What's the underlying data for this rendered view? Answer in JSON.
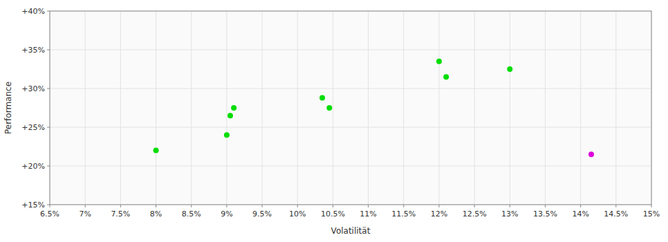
{
  "chart_data": {
    "type": "scatter",
    "xlabel": "Volatilität",
    "ylabel": "Performance",
    "series": [
      {
        "color": "#00dd00",
        "marker": "circle",
        "x": [
          8.0,
          9.0,
          9.05,
          9.1,
          10.35,
          10.45,
          12.0,
          12.1,
          13.0
        ],
        "values": [
          22.0,
          24.0,
          26.5,
          27.5,
          28.8,
          27.5,
          33.5,
          31.5,
          32.5
        ]
      },
      {
        "color": "#dd00dd",
        "marker": "circle",
        "x": [
          14.15
        ],
        "values": [
          21.5
        ]
      }
    ],
    "xlim": [
      6.5,
      15.0
    ],
    "ylim": [
      15.0,
      40.0
    ],
    "xticks": [
      {
        "value": 6.5,
        "label": "6.5%"
      },
      {
        "value": 7.0,
        "label": "7%"
      },
      {
        "value": 7.5,
        "label": "7.5%"
      },
      {
        "value": 8.0,
        "label": "8%"
      },
      {
        "value": 8.5,
        "label": "8.5%"
      },
      {
        "value": 9.0,
        "label": "9%"
      },
      {
        "value": 9.5,
        "label": "9.5%"
      },
      {
        "value": 10.0,
        "label": "10%"
      },
      {
        "value": 10.5,
        "label": "10.5%"
      },
      {
        "value": 11.0,
        "label": "11%"
      },
      {
        "value": 11.5,
        "label": "11.5%"
      },
      {
        "value": 12.0,
        "label": "12%"
      },
      {
        "value": 12.5,
        "label": "12.5%"
      },
      {
        "value": 13.0,
        "label": "13%"
      },
      {
        "value": 13.5,
        "label": "13.5%"
      },
      {
        "value": 14.0,
        "label": "14%"
      },
      {
        "value": 14.5,
        "label": "14.5%"
      },
      {
        "value": 15.0,
        "label": "15%"
      }
    ],
    "yticks": [
      {
        "value": 15.0,
        "label": "+15%"
      },
      {
        "value": 20.0,
        "label": "+20%"
      },
      {
        "value": 25.0,
        "label": "+25%"
      },
      {
        "value": 30.0,
        "label": "+30%"
      },
      {
        "value": 35.0,
        "label": "+35%"
      },
      {
        "value": 40.0,
        "label": "+40%"
      }
    ],
    "grid": true
  }
}
